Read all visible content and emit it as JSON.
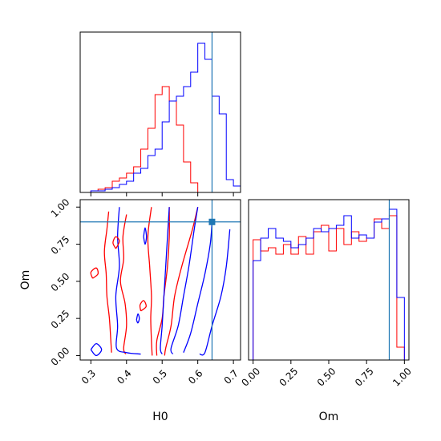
{
  "chart_data": {
    "type": "corner",
    "parameters": [
      "H0",
      "Om"
    ],
    "truth": {
      "H0": 0.64,
      "Om": 0.9
    },
    "colors": {
      "series_a": "#ff0000",
      "series_b": "#0000ff",
      "truth": "#1f77b4"
    },
    "grid": false,
    "legend": "none",
    "panels": [
      {
        "id": "H0_hist",
        "type": "step-histogram",
        "xlabel": "",
        "ylabel": "",
        "xlim": [
          0.27,
          0.72
        ],
        "ylim": [
          0,
          1.0
        ],
        "xticks": [
          0.3,
          0.4,
          0.5,
          0.6,
          0.7
        ],
        "tick_labels_visible": false,
        "bin_edges": [
          0.3,
          0.32,
          0.34,
          0.36,
          0.38,
          0.4,
          0.42,
          0.44,
          0.46,
          0.48,
          0.5,
          0.52,
          0.54,
          0.56,
          0.58,
          0.6,
          0.62,
          0.64,
          0.66,
          0.68,
          0.7,
          0.72
        ],
        "series": [
          {
            "color": "#ff0000",
            "counts": [
              0.01,
              0.02,
              0.03,
              0.07,
              0.09,
              0.12,
              0.16,
              0.27,
              0.4,
              0.61,
              0.66,
              0.57,
              0.42,
              0.19,
              0.06,
              0,
              0,
              0,
              0,
              0,
              0
            ]
          },
          {
            "color": "#0000ff",
            "counts": [
              0.01,
              0.01,
              0.02,
              0.03,
              0.05,
              0.07,
              0.12,
              0.15,
              0.23,
              0.27,
              0.44,
              0.57,
              0.6,
              0.66,
              0.75,
              0.93,
              0.83,
              0.6,
              0.49,
              0.08,
              0.04
            ]
          }
        ],
        "truth_x": 0.64
      },
      {
        "id": "H0_Om_contour",
        "type": "contour",
        "xlabel": "H0",
        "ylabel": "Om",
        "xlim": [
          0.27,
          0.72
        ],
        "ylim": [
          -0.03,
          1.05
        ],
        "xticks": [
          0.3,
          0.4,
          0.5,
          0.6,
          0.7
        ],
        "xtick_labels": [
          "0.3",
          "0.4",
          "0.5",
          "0.6",
          "0.7"
        ],
        "yticks": [
          0.0,
          0.25,
          0.5,
          0.75,
          1.0
        ],
        "ytick_labels": [
          "0.00",
          "0.25",
          "0.50",
          "0.75",
          "1.00"
        ],
        "truth_point": [
          0.64,
          0.9
        ],
        "contours": [
          {
            "color": "#ff0000",
            "level": "outer",
            "points": [
              [
                0.35,
                0.97
              ],
              [
                0.345,
                0.85
              ],
              [
                0.338,
                0.7
              ],
              [
                0.343,
                0.55
              ],
              [
                0.345,
                0.4
              ],
              [
                0.352,
                0.25
              ],
              [
                0.356,
                0.1
              ],
              [
                0.358,
                0.02
              ]
            ]
          },
          {
            "color": "#ff0000",
            "level": "inner",
            "points": [
              [
                0.4,
                0.95
              ],
              [
                0.39,
                0.8
              ],
              [
                0.392,
                0.65
              ],
              [
                0.383,
                0.5
              ],
              [
                0.396,
                0.35
              ],
              [
                0.4,
                0.2
              ],
              [
                0.392,
                0.05
              ],
              [
                0.398,
                0.01
              ]
            ]
          },
          {
            "color": "#ff0000",
            "level": "inner",
            "points": [
              [
                0.47,
                1.0
              ],
              [
                0.46,
                0.8
              ],
              [
                0.465,
                0.6
              ],
              [
                0.47,
                0.4
              ],
              [
                0.468,
                0.25
              ],
              [
                0.47,
                0.1
              ],
              [
                0.472,
                0.0
              ]
            ]
          },
          {
            "color": "#ff0000",
            "level": "inner",
            "points": [
              [
                0.52,
                1.0
              ],
              [
                0.52,
                0.8
              ],
              [
                0.515,
                0.6
              ],
              [
                0.505,
                0.4
              ],
              [
                0.5,
                0.25
              ],
              [
                0.485,
                0.1
              ],
              [
                0.485,
                0.0
              ]
            ]
          },
          {
            "color": "#ff0000",
            "level": "outer",
            "points": [
              [
                0.6,
                1.0
              ],
              [
                0.585,
                0.85
              ],
              [
                0.555,
                0.6
              ],
              [
                0.535,
                0.4
              ],
              [
                0.525,
                0.2
              ],
              [
                0.51,
                0.05
              ],
              [
                0.507,
                0.0
              ]
            ]
          },
          {
            "color": "#0000ff",
            "level": "outer",
            "points": [
              [
                0.38,
                1.0
              ],
              [
                0.375,
                0.8
              ],
              [
                0.38,
                0.6
              ],
              [
                0.37,
                0.4
              ],
              [
                0.375,
                0.2
              ],
              [
                0.372,
                0.05
              ],
              [
                0.4,
                0.02
              ],
              [
                0.44,
                0.01
              ]
            ]
          },
          {
            "color": "#0000ff",
            "level": "inner",
            "points": [
              [
                0.52,
                1.0
              ],
              [
                0.515,
                0.8
              ],
              [
                0.51,
                0.6
              ],
              [
                0.505,
                0.4
              ],
              [
                0.5,
                0.2
              ],
              [
                0.495,
                0.05
              ],
              [
                0.5,
                0.01
              ]
            ]
          },
          {
            "color": "#0000ff",
            "level": "inner",
            "points": [
              [
                0.6,
                1.0
              ],
              [
                0.59,
                0.85
              ],
              [
                0.575,
                0.6
              ],
              [
                0.56,
                0.4
              ],
              [
                0.545,
                0.2
              ],
              [
                0.525,
                0.05
              ],
              [
                0.53,
                0.01
              ]
            ]
          },
          {
            "color": "#0000ff",
            "level": "inner",
            "points": [
              [
                0.64,
                0.9
              ],
              [
                0.635,
                0.75
              ],
              [
                0.62,
                0.55
              ],
              [
                0.6,
                0.35
              ],
              [
                0.58,
                0.15
              ],
              [
                0.56,
                0.02
              ]
            ]
          },
          {
            "color": "#0000ff",
            "level": "outer",
            "points": [
              [
                0.69,
                0.85
              ],
              [
                0.68,
                0.6
              ],
              [
                0.665,
                0.4
              ],
              [
                0.64,
                0.2
              ],
              [
                0.62,
                0.02
              ],
              [
                0.605,
                0.01
              ]
            ]
          }
        ],
        "blobs": [
          {
            "color": "#ff0000",
            "points": [
              [
                0.37,
                0.72
              ],
              [
                0.38,
                0.77
              ],
              [
                0.37,
                0.8
              ],
              [
                0.362,
                0.76
              ],
              [
                0.37,
                0.72
              ]
            ]
          },
          {
            "color": "#ff0000",
            "points": [
              [
                0.305,
                0.52
              ],
              [
                0.32,
                0.55
              ],
              [
                0.315,
                0.59
              ],
              [
                0.3,
                0.56
              ],
              [
                0.305,
                0.52
              ]
            ]
          },
          {
            "color": "#ff0000",
            "points": [
              [
                0.44,
                0.3
              ],
              [
                0.455,
                0.33
              ],
              [
                0.448,
                0.37
              ],
              [
                0.438,
                0.34
              ],
              [
                0.44,
                0.3
              ]
            ]
          },
          {
            "color": "#0000ff",
            "points": [
              [
                0.3,
                0.04
              ],
              [
                0.315,
                0.0
              ],
              [
                0.33,
                0.04
              ],
              [
                0.315,
                0.08
              ],
              [
                0.3,
                0.04
              ]
            ]
          },
          {
            "color": "#0000ff",
            "points": [
              [
                0.428,
                0.24
              ],
              [
                0.432,
                0.22
              ],
              [
                0.436,
                0.25
              ],
              [
                0.432,
                0.28
              ],
              [
                0.428,
                0.24
              ]
            ]
          },
          {
            "color": "#0000ff",
            "points": [
              [
                0.448,
                0.8
              ],
              [
                0.452,
                0.75
              ],
              [
                0.456,
                0.8
              ],
              [
                0.452,
                0.86
              ],
              [
                0.448,
                0.8
              ]
            ]
          }
        ]
      },
      {
        "id": "Om_hist",
        "type": "step-histogram",
        "xlabel": "Om",
        "ylabel": "",
        "xlim": [
          -0.03,
          1.03
        ],
        "ylim": [
          0,
          1.0
        ],
        "xticks": [
          0.0,
          0.25,
          0.5,
          0.75,
          1.0
        ],
        "xtick_labels": [
          "0.00",
          "0.25",
          "0.50",
          "0.75",
          "1.00"
        ],
        "bin_edges": [
          0.0,
          0.05,
          0.1,
          0.15,
          0.2,
          0.25,
          0.3,
          0.35,
          0.4,
          0.45,
          0.5,
          0.55,
          0.6,
          0.65,
          0.7,
          0.75,
          0.8,
          0.85,
          0.9,
          0.95,
          1.0
        ],
        "series": [
          {
            "color": "#ff0000",
            "counts": [
              0.75,
              0.68,
              0.7,
              0.66,
              0.72,
              0.66,
              0.77,
              0.66,
              0.8,
              0.84,
              0.68,
              0.82,
              0.72,
              0.8,
              0.74,
              0.76,
              0.88,
              0.82,
              0.9,
              0.08
            ]
          },
          {
            "color": "#0000ff",
            "counts": [
              0.62,
              0.76,
              0.82,
              0.76,
              0.74,
              0.7,
              0.72,
              0.76,
              0.82,
              0.8,
              0.82,
              0.84,
              0.9,
              0.76,
              0.78,
              0.76,
              0.86,
              0.88,
              0.94,
              0.39
            ]
          }
        ],
        "truth_x": 0.9
      }
    ]
  }
}
